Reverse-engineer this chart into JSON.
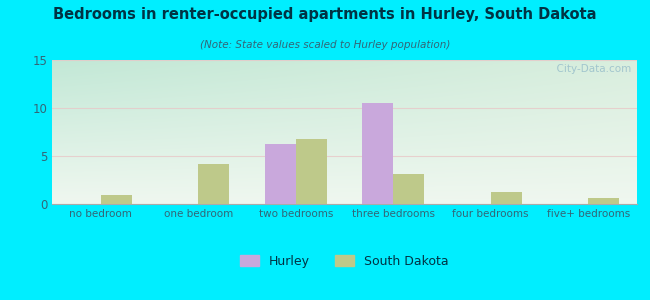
{
  "title": "Bedrooms in renter-occupied apartments in Hurley, South Dakota",
  "subtitle": "(Note: State values scaled to Hurley population)",
  "categories": [
    "no bedroom",
    "one bedroom",
    "two bedrooms",
    "three bedrooms",
    "four bedrooms",
    "five+ bedrooms"
  ],
  "hurley_values": [
    0,
    0,
    6.3,
    10.5,
    0,
    0
  ],
  "sd_values": [
    0.9,
    4.2,
    6.8,
    3.1,
    1.2,
    0.6
  ],
  "hurley_color": "#c9a8dc",
  "sd_color": "#bec98a",
  "background_outer": "#00eeff",
  "ylim": [
    0,
    15
  ],
  "yticks": [
    0,
    5,
    10,
    15
  ],
  "bar_width": 0.32,
  "watermark": "  City-Data.com",
  "title_color": "#003344",
  "subtitle_color": "#336677",
  "tick_color": "#336677"
}
